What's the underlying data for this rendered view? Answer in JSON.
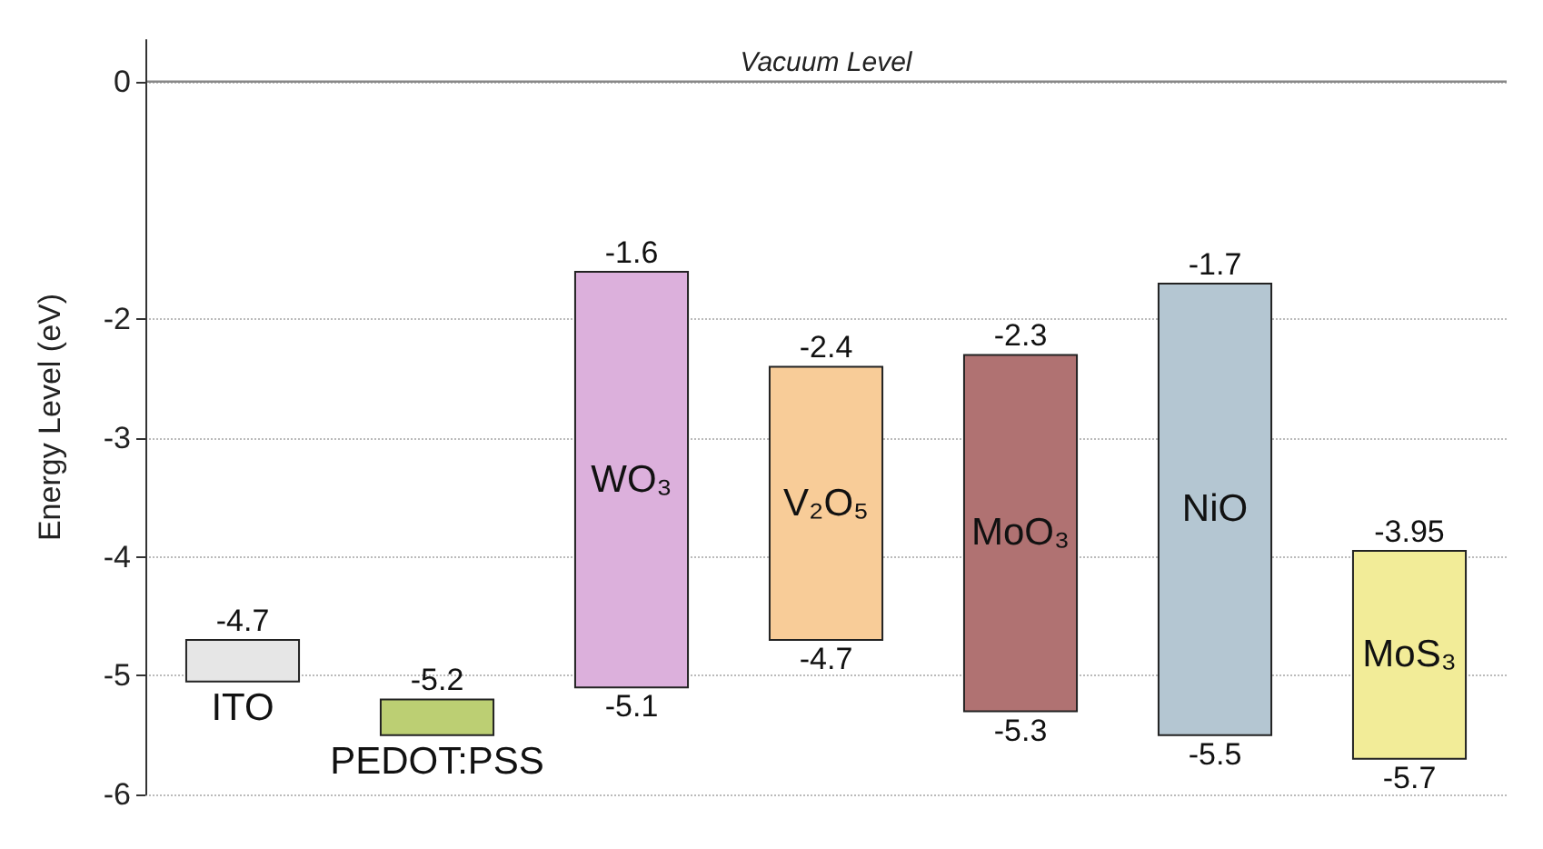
{
  "chart_data": {
    "type": "bar",
    "ylabel": "Energy Level (eV)",
    "categories": [
      "ITO",
      "PEDOT:PSS",
      "WO₃",
      "V₂O₅",
      "MoO₃",
      "NiO",
      "MoS₃"
    ],
    "base": [
      -5.05,
      -5.5,
      -5.1,
      -4.7,
      -5.3,
      -5.5,
      -5.7
    ],
    "values": [
      0.35,
      0.3,
      3.5,
      2.3,
      3.0,
      3.8,
      1.75
    ],
    "colors": [
      "#e6e6e6",
      "#bccf73",
      "#dcb0dc",
      "#f8cc98",
      "#b07272",
      "#b4c6d2",
      "#f2ec98"
    ],
    "ylim": [
      -6,
      0.35
    ],
    "yticks": [
      0,
      -2,
      -3,
      -4,
      -5,
      -6
    ],
    "grid": "y",
    "ref_lines": [
      {
        "axis": "y",
        "value": 0,
        "label": "Vacuum Level",
        "color": "#888888"
      }
    ],
    "annotations": [
      {
        "text": "-4.7",
        "x": "ITO",
        "y": -4.7
      },
      {
        "text": "-5.2",
        "x": "PEDOT:PSS",
        "y": -5.2
      },
      {
        "text": "-1.6",
        "x": "WO₃",
        "y": -1.6
      },
      {
        "text": "-5.1",
        "x": "WO₃",
        "y": -5.1
      },
      {
        "text": "-2.4",
        "x": "V₂O₅",
        "y": -2.4
      },
      {
        "text": "-4.7",
        "x": "V₂O₅",
        "y": -4.7
      },
      {
        "text": "-2.3",
        "x": "MoO₃",
        "y": -2.3
      },
      {
        "text": "-5.3",
        "x": "MoO₃",
        "y": -5.3
      },
      {
        "text": "-1.7",
        "x": "NiO",
        "y": -1.7
      },
      {
        "text": "-5.5",
        "x": "NiO",
        "y": -5.5
      },
      {
        "text": "-3.95",
        "x": "MoS₃",
        "y": -3.95
      },
      {
        "text": "-5.7",
        "x": "MoS₃",
        "y": -5.7
      }
    ]
  }
}
